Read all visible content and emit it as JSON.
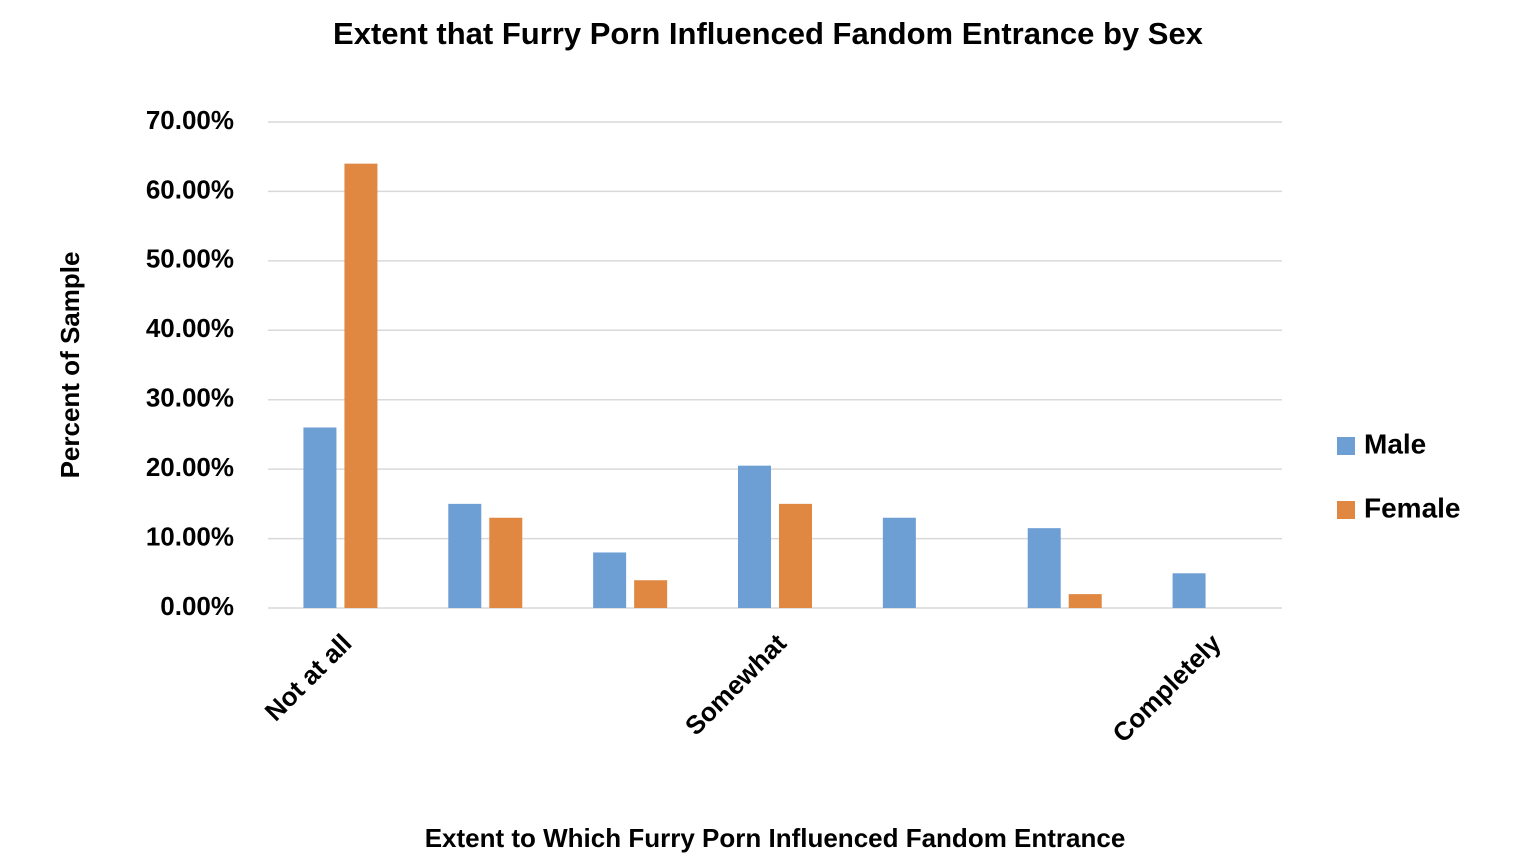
{
  "chart_data": {
    "type": "bar",
    "title": "Extent that Furry Porn Influenced Fandom Entrance by Sex",
    "x_label": "Extent to Which Furry Porn Influenced Fandom Entrance",
    "y_label": "Percent of Sample",
    "categories": [
      "Not at all",
      null,
      null,
      "Somewhat",
      null,
      null,
      "Completely"
    ],
    "series": [
      {
        "name": "Male",
        "color": "#6d9fd5",
        "values": [
          26,
          15,
          8,
          20.5,
          13,
          11.5,
          5
        ]
      },
      {
        "name": "Female",
        "color": "#e08842",
        "values": [
          64,
          13,
          4,
          15,
          0,
          2,
          0
        ]
      }
    ],
    "ylim": [
      0,
      70
    ],
    "yticks": [
      {
        "value": 0,
        "label": "0.00%"
      },
      {
        "value": 10,
        "label": "10.00%"
      },
      {
        "value": 20,
        "label": "20.00%"
      },
      {
        "value": 30,
        "label": "30.00%"
      },
      {
        "value": 40,
        "label": "40.00%"
      },
      {
        "value": 50,
        "label": "50.00%"
      },
      {
        "value": 60,
        "label": "60.00%"
      },
      {
        "value": 70,
        "label": "70.00%"
      }
    ],
    "grid": true,
    "legend": "right"
  }
}
